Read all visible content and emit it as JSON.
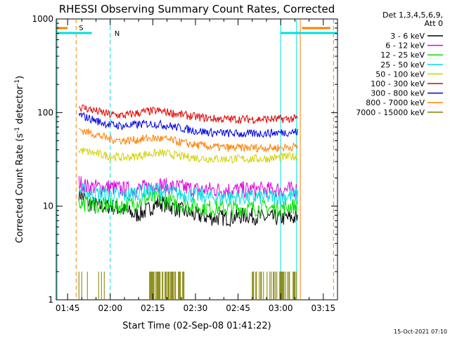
{
  "chart_data": {
    "type": "line",
    "title": "RHESSI Observing Summary Count Rates, Corrected",
    "xlabel": "Start Time (02-Sep-08 01:41:22)",
    "ylabel_main": "Corrected Count Rate (s",
    "ylabel_sup1": "-1",
    "ylabel_mid": " detector",
    "ylabel_sup2": "-1",
    "ylabel_end": ")",
    "yscale": "log",
    "ylim": [
      1,
      1000
    ],
    "xlim_minutes": [
      101,
      200
    ],
    "x_ticks": [
      {
        "minute": 105,
        "label": "01:45"
      },
      {
        "minute": 120,
        "label": "02:00"
      },
      {
        "minute": 135,
        "label": "02:15"
      },
      {
        "minute": 150,
        "label": "02:30"
      },
      {
        "minute": 165,
        "label": "02:45"
      },
      {
        "minute": 180,
        "label": "03:00"
      },
      {
        "minute": 195,
        "label": "03:15"
      }
    ],
    "y_ticks": [
      {
        "value": 1,
        "label": "1"
      },
      {
        "value": 10,
        "label": "10"
      },
      {
        "value": 100,
        "label": "100"
      },
      {
        "value": 1000,
        "label": "1000"
      }
    ],
    "legend_header": [
      "Det 1,3,4,5,6,9,",
      "Att 0"
    ],
    "legend_placement": "right",
    "series": [
      {
        "name": "3 - 6 keV",
        "color": "#000000",
        "x": [
          109,
          112,
          116,
          120,
          125,
          129,
          133,
          137,
          141,
          145,
          150,
          156,
          162,
          168,
          174,
          179,
          184,
          186
        ],
        "values": [
          14,
          11,
          10,
          10,
          9,
          8,
          9,
          11,
          10,
          9,
          8,
          7.5,
          7.5,
          8,
          7.5,
          7.5,
          7.5,
          7.5
        ]
      },
      {
        "name": "6 - 12 keV",
        "color": "#e000e0",
        "x": [
          109,
          112,
          116,
          120,
          125,
          129,
          133,
          137,
          141,
          145,
          150,
          156,
          162,
          168,
          174,
          179,
          184,
          186
        ],
        "values": [
          18,
          16,
          16,
          16,
          15,
          15,
          16,
          17,
          16,
          16,
          15,
          15,
          15,
          15,
          15,
          15,
          15,
          15
        ]
      },
      {
        "name": "12 - 25 keV",
        "color": "#00e000",
        "x": [
          109,
          112,
          116,
          120,
          125,
          129,
          133,
          137,
          141,
          145,
          150,
          156,
          162,
          168,
          174,
          179,
          184,
          186
        ],
        "values": [
          11,
          10.5,
          10,
          10,
          10,
          11,
          12,
          12,
          11,
          10.5,
          10,
          9.5,
          9.5,
          9.5,
          9.5,
          9.5,
          10,
          10
        ]
      },
      {
        "name": "25 - 50 keV",
        "color": "#00e0e0",
        "x": [
          109,
          112,
          116,
          120,
          125,
          129,
          133,
          137,
          141,
          145,
          150,
          156,
          162,
          168,
          174,
          179,
          184,
          186
        ],
        "values": [
          15,
          14,
          13.5,
          13,
          13,
          14,
          14.5,
          15,
          14,
          13.5,
          13,
          12.5,
          12.5,
          12.5,
          12.5,
          12.5,
          13,
          13
        ]
      },
      {
        "name": "50 - 100 keV",
        "color": "#d0d000",
        "x": [
          109,
          112,
          116,
          120,
          125,
          129,
          133,
          137,
          141,
          145,
          150,
          156,
          162,
          168,
          174,
          179,
          184,
          186
        ],
        "values": [
          40,
          38,
          36,
          34,
          33,
          34,
          36,
          37,
          36,
          34,
          33,
          32,
          32,
          32,
          32,
          33,
          34,
          34
        ]
      },
      {
        "name": "100 - 300 keV",
        "color": "#e00000",
        "x": [
          109,
          112,
          116,
          120,
          125,
          129,
          133,
          137,
          141,
          145,
          150,
          156,
          162,
          168,
          174,
          179,
          184,
          186
        ],
        "values": [
          115,
          110,
          102,
          95,
          93,
          98,
          103,
          104,
          100,
          95,
          90,
          86,
          85,
          85,
          85,
          85,
          86,
          86
        ]
      },
      {
        "name": "300 - 800 keV",
        "color": "#0000e0",
        "x": [
          109,
          112,
          116,
          120,
          125,
          129,
          133,
          137,
          141,
          145,
          150,
          156,
          162,
          168,
          174,
          179,
          184,
          186
        ],
        "values": [
          95,
          88,
          80,
          74,
          72,
          74,
          76,
          75,
          72,
          68,
          64,
          61,
          60,
          59,
          60,
          61,
          62,
          62
        ]
      },
      {
        "name": "800 - 7000 keV",
        "color": "#ff8000",
        "x": [
          109,
          112,
          116,
          120,
          125,
          129,
          133,
          137,
          141,
          145,
          150,
          156,
          162,
          168,
          174,
          179,
          184,
          186
        ],
        "values": [
          66,
          62,
          57,
          52,
          50,
          51,
          53,
          53,
          51,
          48,
          45,
          43,
          42,
          42,
          42,
          42,
          43,
          43
        ]
      },
      {
        "name": "7000 - 15000 keV",
        "color": "#808000",
        "x": [],
        "values": []
      }
    ],
    "markers": [
      {
        "label": "S",
        "color": "#ff8000",
        "x_minute": 108
      },
      {
        "label": "N",
        "color": "#00e0e0",
        "x_minute": 120
      }
    ],
    "footer_date": "15-Oct-2021 07:10"
  }
}
